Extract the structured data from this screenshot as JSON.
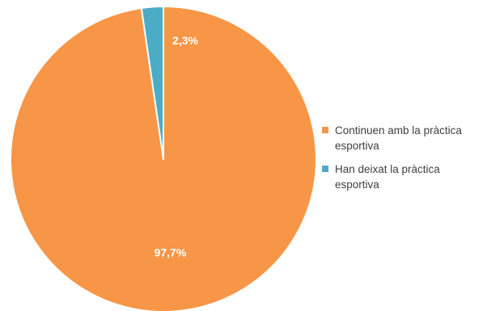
{
  "chart_data": {
    "type": "pie",
    "title": "",
    "slices": [
      {
        "label": "Continuen amb la pràctica esportiva",
        "value": 97.7,
        "data_label": "97,7%",
        "color": "#F79646"
      },
      {
        "label": "Han deixat la pràctica esportiva",
        "value": 2.3,
        "data_label": "2,3%",
        "color": "#4BACC6"
      }
    ],
    "start_angle_deg": 0,
    "direction": "clockwise",
    "legend": {
      "position": "right",
      "entries": [
        {
          "text": "Continuen amb la pràctica esportiva",
          "color": "#F79646"
        },
        {
          "text": "Han deixat la pràctica esportiva",
          "color": "#4BACC6"
        }
      ]
    },
    "data_label_color": "#FFFFFF"
  }
}
